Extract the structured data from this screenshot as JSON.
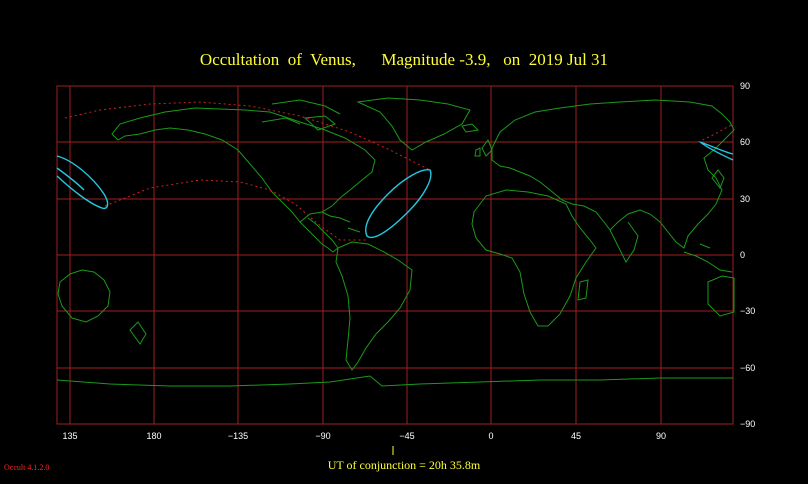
{
  "title": {
    "object": "Occultation  of  Venus,",
    "magnitude": "Magnitude -3.9,",
    "date": "on  2019 Jul 31"
  },
  "footer": {
    "conjunction": "UT of conjunction = 20h 35.8m",
    "version": "Occult 4.1.2.0"
  },
  "map": {
    "longitude_ticks": [
      "135",
      "180",
      "−135",
      "−90",
      "−45",
      "0",
      "45",
      "90"
    ],
    "latitude_ticks": [
      "90",
      "60",
      "30",
      "0",
      "−30",
      "−60",
      "−90"
    ],
    "colors": {
      "background": "#000000",
      "grid": "#a02020",
      "coastline": "#1a9a1a",
      "occultation_path": "#22c8e0",
      "graze_limit": "#d02020",
      "text": "#ffff33"
    }
  }
}
